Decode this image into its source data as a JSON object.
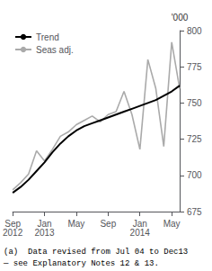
{
  "chart_data": {
    "type": "line",
    "ylabel": "'000",
    "annotations": [
      "(a)  Data revised from Jul 04 to Dec13",
      "— see Explanatory Notes 12 & 13."
    ],
    "categories": [
      "Sep\n2012",
      null,
      null,
      null,
      "Jan\n2013",
      null,
      null,
      null,
      "May",
      null,
      null,
      null,
      "Sep",
      null,
      null,
      null,
      "Jan\n2014",
      null,
      null,
      null,
      "May",
      null
    ],
    "series": [
      {
        "name": "Seas adj.",
        "color": "#aaaaaa",
        "values": [
          690,
          695,
          701,
          717,
          710,
          718,
          727,
          730,
          735,
          738,
          741,
          737,
          742,
          744,
          758,
          742,
          718,
          780,
          760,
          720,
          792,
          760
        ]
      },
      {
        "name": "Trend",
        "color": "#000000",
        "values": [
          688,
          692,
          697,
          703,
          709,
          716,
          722,
          727,
          731,
          734,
          736,
          738,
          740,
          742,
          744,
          746,
          748,
          750,
          752,
          755,
          758,
          762
        ]
      }
    ],
    "ylim": [
      675,
      800
    ],
    "yticks": [
      675,
      700,
      725,
      750,
      775,
      800
    ],
    "grid": false,
    "legend": "upper left"
  }
}
